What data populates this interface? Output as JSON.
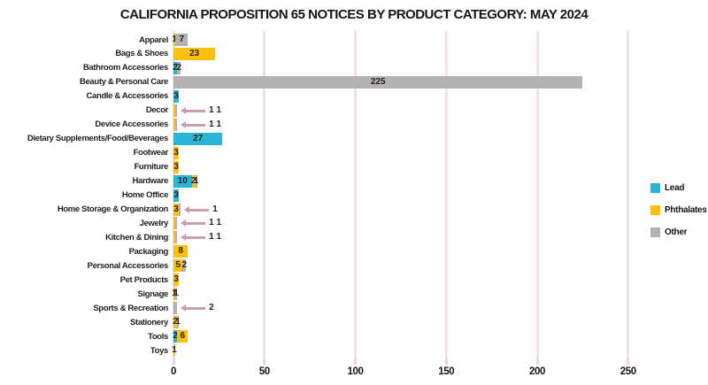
{
  "title": "CALIFORNIA PROPOSITION 65 NOTICES BY PRODUCT CATEGORY: MAY 2024",
  "axis": {
    "ticks": [
      0,
      50,
      100,
      150,
      200,
      250
    ],
    "max": 250
  },
  "legend": [
    {
      "label": "Lead",
      "color": "#29b5d6"
    },
    {
      "label": "Phthalates",
      "color": "#fdc011"
    },
    {
      "label": "Other",
      "color": "#b3b1b2"
    }
  ],
  "colors": {
    "gridline": "#f3dfe6",
    "callout_arrow": "#cb9fb0",
    "label_text": "#231f20",
    "background": "#ffffff"
  },
  "chart_data": {
    "type": "bar",
    "orientation": "horizontal-stacked",
    "title": "CALIFORNIA PROPOSITION 65 NOTICES BY PRODUCT CATEGORY: MAY 2024",
    "xlabel": "",
    "ylabel": "",
    "xlim": [
      0,
      250
    ],
    "grid": "vertical",
    "legend_position": "right",
    "categories": [
      "Apparel",
      "Bags & Shoes",
      "Bathroom Accessories",
      "Beauty & Personal Care",
      "Candle & Accessories",
      "Decor",
      "Device Accessories",
      "Dietary Supplements/Food/Beverages",
      "Footwear",
      "Furniture",
      "Hardware",
      "Home Office",
      "Home Storage & Organization",
      "Jewelry",
      "Kitchen & Dining",
      "Packaging",
      "Personal Accessories",
      "Pet Products",
      "Signage",
      "Sports & Recreation",
      "Stationery",
      "Tools",
      "Toys"
    ],
    "series": [
      {
        "name": "Lead",
        "color": "#29b5d6",
        "values": [
          0,
          0,
          2,
          0,
          3,
          0,
          0,
          27,
          0,
          0,
          10,
          3,
          0,
          0,
          0,
          0,
          0,
          0,
          0,
          0,
          0,
          2,
          0
        ]
      },
      {
        "name": "Phthalates",
        "color": "#fdc011",
        "values": [
          1,
          23,
          0,
          0,
          0,
          1,
          1,
          0,
          3,
          3,
          2,
          0,
          3,
          1,
          1,
          8,
          5,
          3,
          1,
          0,
          2,
          6,
          1
        ]
      },
      {
        "name": "Other",
        "color": "#b3b1b2",
        "values": [
          7,
          0,
          2,
          225,
          0,
          1,
          1,
          0,
          0,
          0,
          1,
          0,
          1,
          1,
          1,
          0,
          2,
          0,
          1,
          2,
          1,
          0,
          0
        ]
      }
    ],
    "callout_rows": [
      "Decor",
      "Device Accessories",
      "Home Storage & Organization",
      "Jewelry",
      "Kitchen & Dining",
      "Sports & Recreation"
    ]
  }
}
